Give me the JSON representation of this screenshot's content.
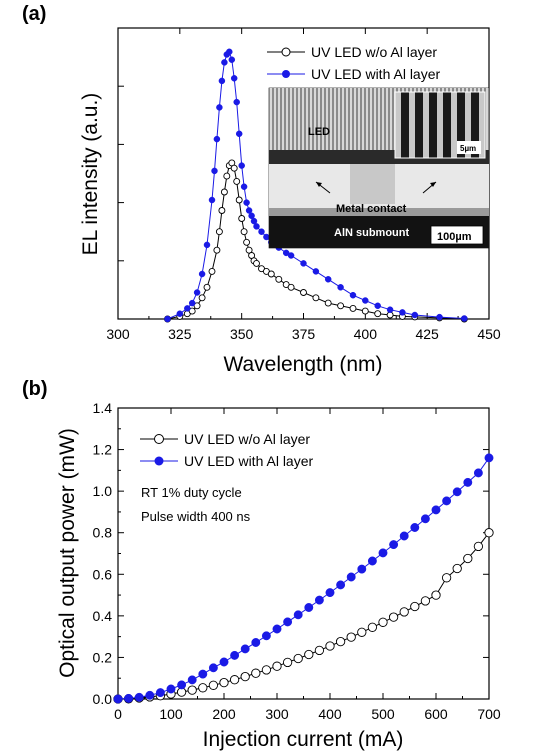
{
  "chart_data": [
    {
      "panel": "(a)",
      "type": "line",
      "xlabel": "Wavelength (nm)",
      "ylabel": "EL intensity (a.u.)",
      "xlim": [
        300,
        450
      ],
      "ylim": [
        0,
        1.1
      ],
      "xticks": [
        300,
        325,
        350,
        375,
        400,
        425,
        450
      ],
      "yticks_labeled": false,
      "legend_position": "top-right",
      "series": [
        {
          "name": "UV LED w/o Al layer",
          "marker": "open-circle",
          "color": "#000000",
          "x": [
            320,
            325,
            328,
            330,
            332,
            334,
            336,
            338,
            340,
            341,
            342,
            343,
            344,
            345,
            346,
            347,
            348,
            349,
            350,
            351,
            352,
            353,
            354,
            355,
            356,
            358,
            360,
            362,
            365,
            368,
            370,
            375,
            380,
            385,
            390,
            395,
            400,
            405,
            410,
            415,
            420,
            430,
            440
          ],
          "y": [
            0.0,
            0.01,
            0.02,
            0.03,
            0.05,
            0.08,
            0.12,
            0.18,
            0.26,
            0.33,
            0.41,
            0.48,
            0.54,
            0.58,
            0.59,
            0.57,
            0.52,
            0.45,
            0.38,
            0.33,
            0.29,
            0.26,
            0.24,
            0.22,
            0.21,
            0.19,
            0.18,
            0.17,
            0.15,
            0.13,
            0.12,
            0.1,
            0.08,
            0.06,
            0.05,
            0.04,
            0.03,
            0.02,
            0.015,
            0.01,
            0.008,
            0.004,
            0.0
          ]
        },
        {
          "name": "UV LED with Al layer",
          "marker": "filled-circle",
          "color": "#1a1ae6",
          "x": [
            320,
            325,
            328,
            330,
            332,
            334,
            336,
            338,
            339,
            340,
            341,
            342,
            343,
            344,
            345,
            346,
            347,
            348,
            349,
            350,
            351,
            352,
            353,
            354,
            355,
            356,
            358,
            360,
            362,
            365,
            368,
            370,
            375,
            380,
            385,
            390,
            395,
            400,
            405,
            410,
            415,
            420,
            430,
            440
          ],
          "y": [
            0.0,
            0.02,
            0.04,
            0.06,
            0.1,
            0.17,
            0.28,
            0.45,
            0.56,
            0.68,
            0.8,
            0.9,
            0.97,
            1.0,
            1.01,
            0.98,
            0.91,
            0.82,
            0.7,
            0.58,
            0.5,
            0.44,
            0.41,
            0.39,
            0.37,
            0.35,
            0.33,
            0.31,
            0.29,
            0.27,
            0.25,
            0.24,
            0.21,
            0.18,
            0.15,
            0.12,
            0.09,
            0.07,
            0.05,
            0.035,
            0.025,
            0.015,
            0.007,
            0.002
          ]
        }
      ]
    },
    {
      "panel": "(b)",
      "type": "scatter",
      "xlabel": "Injection current (mA)",
      "ylabel": "Optical output power (mW)",
      "xlim": [
        0,
        700
      ],
      "ylim": [
        0,
        1.4
      ],
      "xticks": [
        0,
        100,
        200,
        300,
        400,
        500,
        600,
        700
      ],
      "yticks": [
        0.0,
        0.2,
        0.4,
        0.6,
        0.8,
        1.0,
        1.2,
        1.4
      ],
      "legend_position": "top-left",
      "annotations": [
        "RT 1% duty cycle",
        "Pulse width 400 ns"
      ],
      "series": [
        {
          "name": "UV LED w/o Al layer",
          "marker": "open-circle",
          "color": "#000000",
          "x": [
            0,
            20,
            40,
            60,
            80,
            100,
            120,
            140,
            160,
            180,
            200,
            220,
            240,
            260,
            280,
            300,
            320,
            340,
            360,
            380,
            400,
            420,
            440,
            460,
            480,
            500,
            520,
            540,
            560,
            580,
            600,
            620,
            640,
            660,
            680,
            700
          ],
          "y": [
            0.0,
            0.001,
            0.005,
            0.01,
            0.016,
            0.024,
            0.033,
            0.043,
            0.054,
            0.066,
            0.079,
            0.093,
            0.108,
            0.124,
            0.14,
            0.158,
            0.176,
            0.195,
            0.214,
            0.234,
            0.255,
            0.276,
            0.298,
            0.321,
            0.345,
            0.369,
            0.394,
            0.419,
            0.445,
            0.472,
            0.5,
            0.583,
            0.628,
            0.676,
            0.734,
            0.8
          ]
        },
        {
          "name": "UV LED with Al layer",
          "marker": "filled-circle",
          "color": "#1a1ae6",
          "x": [
            0,
            20,
            40,
            60,
            80,
            100,
            120,
            140,
            160,
            180,
            200,
            220,
            240,
            260,
            280,
            300,
            320,
            340,
            360,
            380,
            400,
            420,
            440,
            460,
            480,
            500,
            520,
            540,
            560,
            580,
            600,
            620,
            640,
            660,
            680,
            700
          ],
          "y": [
            0.0,
            0.003,
            0.008,
            0.018,
            0.031,
            0.048,
            0.068,
            0.092,
            0.12,
            0.15,
            0.178,
            0.21,
            0.241,
            0.272,
            0.304,
            0.337,
            0.371,
            0.405,
            0.44,
            0.476,
            0.512,
            0.549,
            0.587,
            0.625,
            0.664,
            0.703,
            0.743,
            0.784,
            0.825,
            0.867,
            0.91,
            0.953,
            0.997,
            1.042,
            1.088,
            1.16
          ]
        }
      ]
    }
  ],
  "inset": {
    "label_led": "LED",
    "label_contact": "Metal contact",
    "label_submount": "AlN submount",
    "scale_large": "100µm",
    "scale_small": "5µm"
  }
}
